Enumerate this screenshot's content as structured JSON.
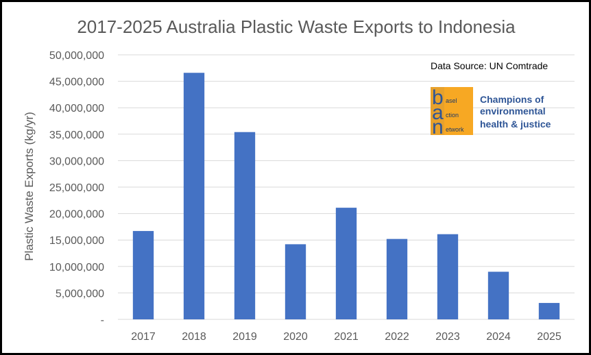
{
  "chart_data": {
    "type": "bar",
    "title": "2017-2025 Australia Plastic Waste Exports to Indonesia",
    "xlabel": "",
    "ylabel": "Plastic Waste Exports (kg/yr)",
    "categories": [
      "2017",
      "2018",
      "2019",
      "2020",
      "2021",
      "2022",
      "2023",
      "2024",
      "2025"
    ],
    "values": [
      16700000,
      46600000,
      35400000,
      14200000,
      21100000,
      15200000,
      16100000,
      9000000,
      3100000
    ],
    "ylim": [
      0,
      50000000
    ],
    "yticks": [
      0,
      5000000,
      10000000,
      15000000,
      20000000,
      25000000,
      30000000,
      35000000,
      40000000,
      45000000,
      50000000
    ],
    "yticklabels": [
      "-",
      "5,000,000",
      "10,000,000",
      "15,000,000",
      "20,000,000",
      "25,000,000",
      "30,000,000",
      "35,000,000",
      "40,000,000",
      "45,000,000",
      "50,000,000"
    ],
    "grid": true,
    "bar_color": "#4472c4",
    "annotation": "Data Source: UN Comtrade"
  },
  "logo": {
    "letters": [
      "b",
      "a",
      "n"
    ],
    "words": [
      "asel",
      "ction",
      "etwork"
    ],
    "tagline": [
      "Champions of",
      "environmental",
      "health & justice"
    ],
    "logo_bg": "#f7a823",
    "text_color": "#2e5596"
  }
}
